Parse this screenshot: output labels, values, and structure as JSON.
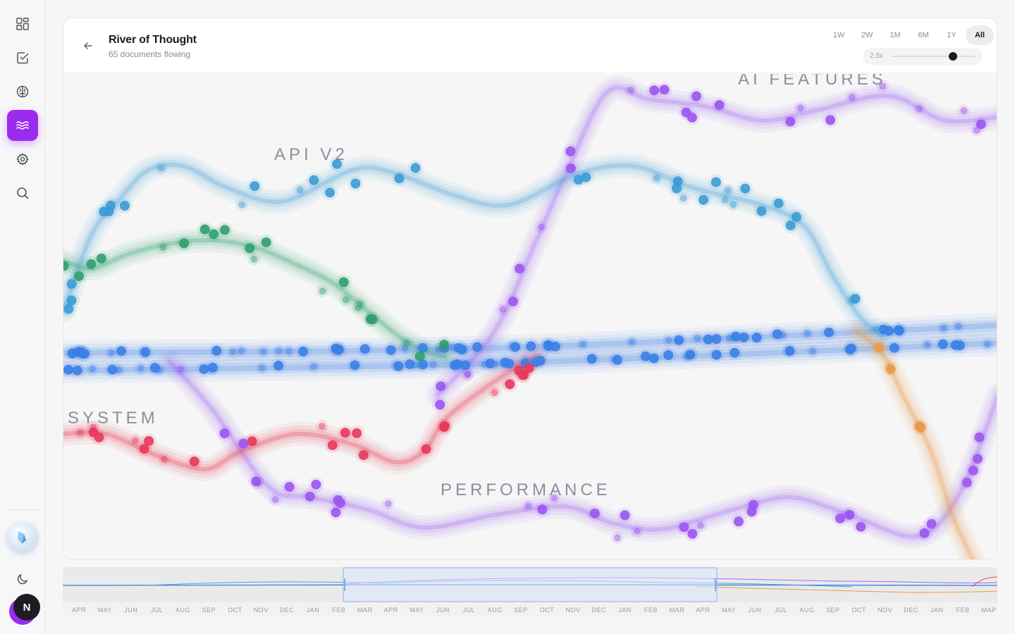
{
  "sidebar": {
    "items": [
      {
        "name": "dashboard-icon",
        "active": false
      },
      {
        "name": "tasks-icon",
        "active": false
      },
      {
        "name": "brain-icon",
        "active": false
      },
      {
        "name": "river-icon",
        "active": true
      },
      {
        "name": "settings-icon",
        "active": false
      },
      {
        "name": "search-icon",
        "active": false
      }
    ],
    "theme_icon": "moon-icon",
    "avatar_initial": "N"
  },
  "header": {
    "title": "River of Thought",
    "subtitle": "65 documents flowing",
    "ranges": [
      "1W",
      "2W",
      "1M",
      "6M",
      "1Y",
      "All"
    ],
    "active_range": "All",
    "zoom_label": "2.5x",
    "zoom_level": 0.85
  },
  "streams": [
    {
      "label": "AI FEATURES",
      "color": "#9a5cf0"
    },
    {
      "label": "API V2",
      "color": "#3c9ed6"
    },
    {
      "label": "SYSTEM",
      "color": "#e8405e"
    },
    {
      "label": "PERFORMANCE",
      "color": "#9a5cf0"
    }
  ],
  "minimap": {
    "months": [
      "APR",
      "MAY",
      "JUN",
      "JUL",
      "AUG",
      "SEP",
      "OCT",
      "NOV",
      "DEC",
      "JAN",
      "FEB",
      "MAR",
      "APR",
      "MAY",
      "JUN",
      "JUL",
      "AUG",
      "SEP",
      "OCT",
      "NOV",
      "DEC",
      "JAN",
      "FEB",
      "MAR",
      "APR",
      "MAY",
      "JUN",
      "JUL",
      "AUG",
      "SEP",
      "OCT",
      "NOV",
      "DEC",
      "JAN",
      "FEB",
      "MAP"
    ]
  }
}
